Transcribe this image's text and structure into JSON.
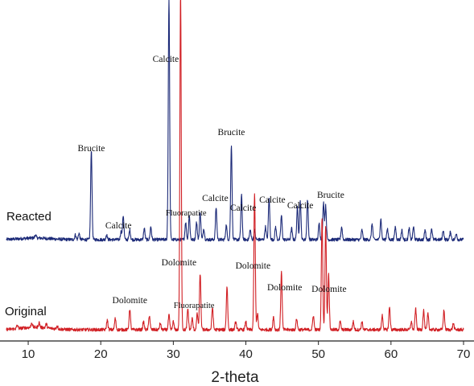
{
  "chart_data": {
    "type": "line",
    "xlabel": "2-theta",
    "ylabel": "",
    "xlim": [
      7,
      70
    ],
    "x_ticks": [
      10,
      20,
      30,
      40,
      50,
      60,
      70
    ],
    "x_tick_labels": [
      "10",
      "20",
      "30",
      "40",
      "50",
      "60",
      "70"
    ],
    "grid": false,
    "legend": "inline labels at left",
    "series": [
      {
        "name": "Reacted",
        "color": "#1c2a78",
        "baseline": 0,
        "peaks": [
          [
            11.0,
            4
          ],
          [
            16.5,
            6
          ],
          [
            17.0,
            8
          ],
          [
            18.7,
            112
          ],
          [
            20.8,
            6
          ],
          [
            22.8,
            10
          ],
          [
            23.1,
            30
          ],
          [
            24.0,
            12
          ],
          [
            26.0,
            14
          ],
          [
            26.9,
            16
          ],
          [
            29.4,
            300
          ],
          [
            31.7,
            22
          ],
          [
            32.2,
            30
          ],
          [
            33.2,
            22
          ],
          [
            33.7,
            34
          ],
          [
            34.2,
            14
          ],
          [
            35.9,
            40
          ],
          [
            37.3,
            18
          ],
          [
            38.0,
            118
          ],
          [
            39.4,
            55
          ],
          [
            40.6,
            12
          ],
          [
            41.2,
            12
          ],
          [
            42.7,
            16
          ],
          [
            43.2,
            52
          ],
          [
            44.1,
            16
          ],
          [
            44.9,
            30
          ],
          [
            46.3,
            14
          ],
          [
            47.1,
            40
          ],
          [
            47.5,
            48
          ],
          [
            48.5,
            50
          ],
          [
            50.1,
            20
          ],
          [
            50.7,
            46
          ],
          [
            51.0,
            42
          ],
          [
            53.2,
            16
          ],
          [
            56.0,
            12
          ],
          [
            57.4,
            20
          ],
          [
            58.6,
            26
          ],
          [
            59.5,
            14
          ],
          [
            60.6,
            16
          ],
          [
            61.5,
            12
          ],
          [
            62.5,
            14
          ],
          [
            63.1,
            16
          ],
          [
            64.7,
            12
          ],
          [
            65.6,
            14
          ],
          [
            67.2,
            12
          ],
          [
            68.2,
            10
          ],
          [
            69.0,
            8
          ]
        ]
      },
      {
        "name": "Original",
        "color": "#d11f24",
        "baseline": 0,
        "peaks": [
          [
            8.5,
            4
          ],
          [
            10.5,
            6
          ],
          [
            11.5,
            6
          ],
          [
            12.5,
            5
          ],
          [
            14.0,
            4
          ],
          [
            20.9,
            12
          ],
          [
            22.0,
            14
          ],
          [
            24.0,
            26
          ],
          [
            25.9,
            10
          ],
          [
            26.7,
            18
          ],
          [
            28.2,
            8
          ],
          [
            29.4,
            18
          ],
          [
            30.0,
            10
          ],
          [
            31.0,
            420
          ],
          [
            32.0,
            26
          ],
          [
            32.6,
            14
          ],
          [
            33.3,
            20
          ],
          [
            33.7,
            70
          ],
          [
            35.4,
            28
          ],
          [
            37.4,
            54
          ],
          [
            38.6,
            10
          ],
          [
            40.0,
            10
          ],
          [
            41.2,
            170
          ],
          [
            41.6,
            20
          ],
          [
            43.8,
            16
          ],
          [
            44.9,
            72
          ],
          [
            47.0,
            14
          ],
          [
            49.3,
            18
          ],
          [
            50.5,
            140
          ],
          [
            51.0,
            130
          ],
          [
            51.4,
            70
          ],
          [
            53.0,
            10
          ],
          [
            54.8,
            10
          ],
          [
            56.0,
            10
          ],
          [
            58.8,
            18
          ],
          [
            59.8,
            28
          ],
          [
            62.8,
            10
          ],
          [
            63.4,
            26
          ],
          [
            64.5,
            24
          ],
          [
            65.1,
            20
          ],
          [
            67.3,
            24
          ],
          [
            68.6,
            8
          ]
        ]
      }
    ],
    "series_labels": {
      "reacted": "Reacted",
      "original": "Original"
    },
    "annotations": [
      {
        "text": "Brucite",
        "series": "Reacted",
        "x": 18.7
      },
      {
        "text": "Calcite",
        "series": "Reacted",
        "x": 23.1
      },
      {
        "text": "Calcite",
        "series": "Reacted",
        "x": 29.4
      },
      {
        "text": "Fluorapatite",
        "series": "Reacted",
        "x": 32.2
      },
      {
        "text": "Brucite",
        "series": "Reacted",
        "x": 38.0
      },
      {
        "text": "Calcite",
        "series": "Reacted",
        "x": 36.0
      },
      {
        "text": "Calcite",
        "series": "Reacted",
        "x": 39.4
      },
      {
        "text": "Calcite",
        "series": "Reacted",
        "x": 43.2
      },
      {
        "text": "Calcite",
        "series": "Reacted",
        "x": 47.5
      },
      {
        "text": "Brucite",
        "series": "Reacted",
        "x": 50.8
      },
      {
        "text": "Dolomite",
        "series": "Original",
        "x": 24.0
      },
      {
        "text": "Dolomite",
        "series": "Original",
        "x": 31.0
      },
      {
        "text": "Fluorapatite",
        "series": "Original",
        "x": 33.3
      },
      {
        "text": "Dolomite",
        "series": "Original",
        "x": 41.2
      },
      {
        "text": "Dolomite",
        "series": "Original",
        "x": 44.9
      },
      {
        "text": "Dolomite",
        "series": "Original",
        "x": 50.8
      }
    ]
  }
}
